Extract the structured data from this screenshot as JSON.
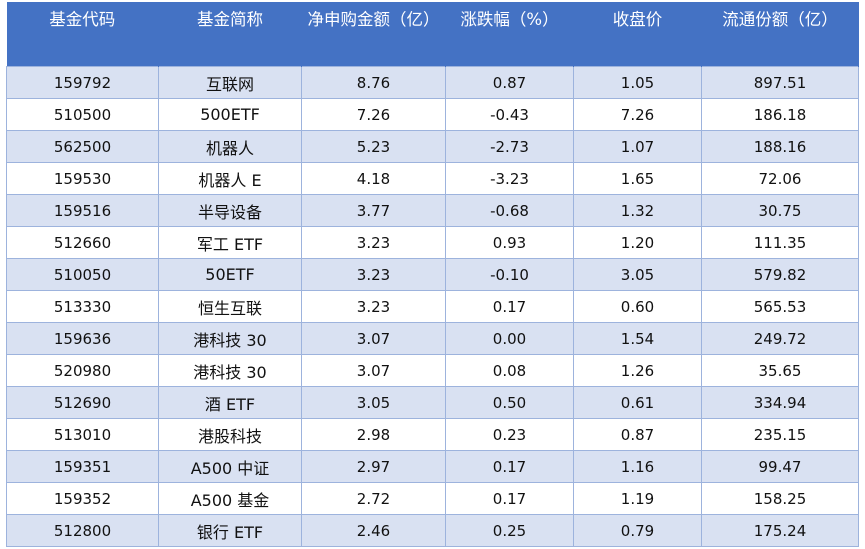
{
  "table": {
    "columns": [
      "基金代码",
      "基金简称",
      "净申购金额（亿）",
      "涨跌幅（%）",
      "收盘价",
      "流通份额（亿）"
    ],
    "rows": [
      [
        "159792",
        "互联网",
        "8.76",
        "0.87",
        "1.05",
        "897.51"
      ],
      [
        "510500",
        "500ETF",
        "7.26",
        "-0.43",
        "7.26",
        "186.18"
      ],
      [
        "562500",
        "机器人",
        "5.23",
        "-2.73",
        "1.07",
        "188.16"
      ],
      [
        "159530",
        "机器人 E",
        "4.18",
        "-3.23",
        "1.65",
        "72.06"
      ],
      [
        "159516",
        "半导设备",
        "3.77",
        "-0.68",
        "1.32",
        "30.75"
      ],
      [
        "512660",
        "军工 ETF",
        "3.23",
        "0.93",
        "1.20",
        "111.35"
      ],
      [
        "510050",
        "50ETF",
        "3.23",
        "-0.10",
        "3.05",
        "579.82"
      ],
      [
        "513330",
        "恒生互联",
        "3.23",
        "0.17",
        "0.60",
        "565.53"
      ],
      [
        "159636",
        "港科技 30",
        "3.07",
        "0.00",
        "1.54",
        "249.72"
      ],
      [
        "520980",
        "港科技 30",
        "3.07",
        "0.08",
        "1.26",
        "35.65"
      ],
      [
        "512690",
        "酒 ETF",
        "3.05",
        "0.50",
        "0.61",
        "334.94"
      ],
      [
        "513010",
        "港股科技",
        "2.98",
        "0.23",
        "0.87",
        "235.15"
      ],
      [
        "159351",
        "A500 中证",
        "2.97",
        "0.17",
        "1.16",
        "99.47"
      ],
      [
        "159352",
        "A500 基金",
        "2.72",
        "0.17",
        "1.19",
        "158.25"
      ],
      [
        "512800",
        "银行 ETF",
        "2.46",
        "0.25",
        "0.79",
        "175.24"
      ]
    ]
  }
}
